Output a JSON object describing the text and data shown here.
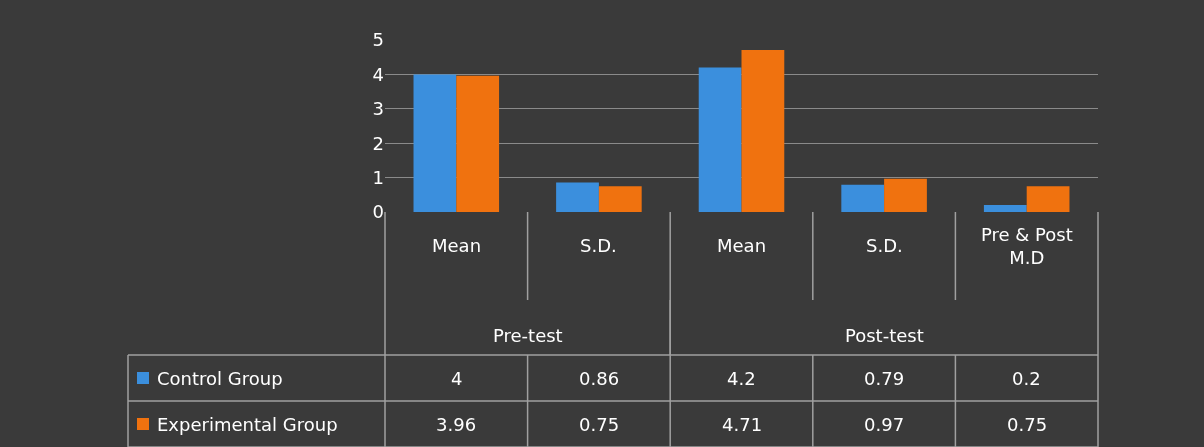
{
  "chart_data": {
    "type": "bar",
    "categories": [
      "Mean",
      "S.D.",
      "Mean",
      "S.D.",
      "Pre & Post M.D"
    ],
    "annotations": [
      "Pre-test",
      "Post-test"
    ],
    "series": [
      {
        "name": "Control Group",
        "color": "#3b8fdd",
        "values": [
          4,
          0.86,
          4.2,
          0.79,
          0.2
        ]
      },
      {
        "name": "Experimental Group",
        "color": "#f0720f",
        "values": [
          3.96,
          0.75,
          4.71,
          0.97,
          0.75
        ]
      }
    ],
    "ylim": [
      0,
      5
    ],
    "yticks": [
      0,
      1,
      2,
      3,
      4,
      5
    ],
    "grid": "y",
    "legend": "bottom left",
    "data_labels": true
  }
}
